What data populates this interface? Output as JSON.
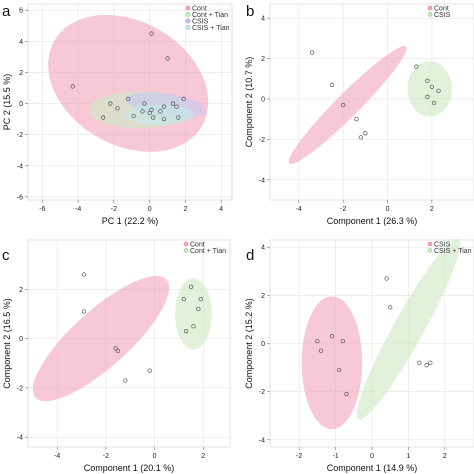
{
  "figure": {
    "panel_labels": [
      "a",
      "b",
      "c",
      "d"
    ]
  },
  "chart_data": [
    {
      "panel": "a",
      "type": "scatter",
      "xlabel": "PC 1 (22.2 %)",
      "ylabel": "PC 2 (15.5 %)",
      "xlim": [
        -6.8,
        4.6
      ],
      "ylim": [
        -6.2,
        6.4
      ],
      "xticks": [
        -6,
        -4,
        -2,
        0,
        2,
        4
      ],
      "yticks": [
        -6,
        -4,
        -2,
        0,
        2,
        4,
        6
      ],
      "grid": true,
      "legend": {
        "position": "top-right",
        "entries": [
          "Cont",
          "Cont + Tian",
          "CSIS",
          "CSIS + Tian"
        ]
      },
      "series": [
        {
          "name": "Cont",
          "color": "#e8879f",
          "fill": "#f2a7bc",
          "ellipse": {
            "cx": -1.2,
            "cy": 1.3,
            "rx": 5.1,
            "ry": 3.7,
            "angle": 30
          },
          "points": [
            [
              -4.3,
              1.1
            ],
            [
              0.1,
              4.5
            ],
            [
              1.0,
              2.9
            ],
            [
              -2.2,
              0.0
            ],
            [
              0.8,
              -0.2
            ]
          ]
        },
        {
          "name": "Cont + Tian",
          "color": "#9acd8c",
          "fill": "#cfe8c4",
          "ellipse": {
            "cx": -0.6,
            "cy": -0.4,
            "rx": 3.0,
            "ry": 1.1,
            "angle": 0
          },
          "points": [
            [
              -2.6,
              -0.9
            ],
            [
              -1.2,
              0.3
            ],
            [
              -0.3,
              0.0
            ],
            [
              0.0,
              -0.6
            ],
            [
              -1.8,
              -0.3
            ]
          ]
        },
        {
          "name": "CSIS",
          "color": "#9fa0e3",
          "fill": "#c8c8f2",
          "ellipse": {
            "cx": 0.9,
            "cy": -0.1,
            "rx": 2.4,
            "ry": 0.7,
            "angle": 8
          },
          "points": [
            [
              0.6,
              -0.5
            ],
            [
              1.3,
              0.0
            ],
            [
              1.9,
              0.3
            ],
            [
              1.5,
              -0.2
            ],
            [
              0.1,
              -0.4
            ]
          ]
        },
        {
          "name": "CSIS + Tian",
          "color": "#8fd0d6",
          "fill": "#c3e8ec",
          "ellipse": {
            "cx": 0.5,
            "cy": -0.7,
            "rx": 2.1,
            "ry": 0.6,
            "angle": 0
          },
          "points": [
            [
              -0.4,
              -0.5
            ],
            [
              0.2,
              -0.9
            ],
            [
              0.8,
              -1.0
            ],
            [
              1.6,
              -0.9
            ],
            [
              -0.9,
              -0.8
            ]
          ]
        }
      ]
    },
    {
      "panel": "b",
      "type": "scatter",
      "xlabel": "Component 1 (26.3 %)",
      "ylabel": "Component 2 (10.7 %)",
      "xlim": [
        -5.3,
        3.9
      ],
      "ylim": [
        -5.0,
        4.7
      ],
      "xticks": [
        -4,
        -2,
        0,
        2
      ],
      "yticks": [
        -4,
        -2,
        0,
        2,
        4
      ],
      "grid": true,
      "legend": {
        "position": "top-right",
        "entries": [
          "Cont",
          "CSIS"
        ]
      },
      "series": [
        {
          "name": "Cont",
          "color": "#e8879f",
          "fill": "#f2a7bc",
          "ellipse": {
            "cx": -1.8,
            "cy": -0.3,
            "rx": 3.9,
            "ry": 0.55,
            "angle": -45
          },
          "points": [
            [
              -3.4,
              2.3
            ],
            [
              -2.5,
              0.7
            ],
            [
              -2.0,
              -0.3
            ],
            [
              -1.4,
              -1.0
            ],
            [
              -1.2,
              -1.9
            ],
            [
              -1.0,
              -1.7
            ]
          ]
        },
        {
          "name": "CSIS",
          "color": "#9acd8c",
          "fill": "#cfe8c4",
          "ellipse": {
            "cx": 1.9,
            "cy": 0.5,
            "rx": 1.05,
            "ry": 1.3,
            "angle": 0
          },
          "points": [
            [
              1.3,
              1.6
            ],
            [
              1.8,
              0.9
            ],
            [
              2.0,
              0.6
            ],
            [
              1.8,
              0.1
            ],
            [
              2.1,
              -0.2
            ],
            [
              2.3,
              0.4
            ]
          ]
        }
      ]
    },
    {
      "panel": "c",
      "type": "scatter",
      "xlabel": "Component 1 (20.1 %)",
      "ylabel": "Component 2 (16.5 %)",
      "xlim": [
        -5.2,
        3.1
      ],
      "ylim": [
        -4.4,
        4.0
      ],
      "xticks": [
        -4,
        -2,
        0,
        2
      ],
      "yticks": [
        -4,
        -2,
        0,
        2
      ],
      "grid": true,
      "legend": {
        "position": "top-right",
        "entries": [
          "Cont",
          "Cont + Tian"
        ]
      },
      "series": [
        {
          "name": "Cont",
          "color": "#e8879f",
          "fill": "#f2a7bc",
          "ellipse": {
            "cx": -2.2,
            "cy": 0.0,
            "rx": 3.6,
            "ry": 1.15,
            "angle": -42
          },
          "points": [
            [
              -2.9,
              2.6
            ],
            [
              -2.9,
              1.1
            ],
            [
              -1.6,
              -0.4
            ],
            [
              -1.5,
              -0.5
            ],
            [
              -1.2,
              -1.7
            ],
            [
              -0.2,
              -1.3
            ]
          ]
        },
        {
          "name": "Cont + Tian",
          "color": "#9acd8c",
          "fill": "#cfe8c4",
          "ellipse": {
            "cx": 1.6,
            "cy": 1.0,
            "rx": 0.75,
            "ry": 1.45,
            "angle": 0
          },
          "points": [
            [
              1.2,
              1.6
            ],
            [
              1.3,
              0.3
            ],
            [
              1.8,
              1.2
            ],
            [
              1.9,
              1.6
            ],
            [
              1.6,
              0.5
            ],
            [
              1.5,
              2.1
            ]
          ]
        }
      ]
    },
    {
      "panel": "d",
      "type": "scatter",
      "xlabel": "Component 1 (14.9 %)",
      "ylabel": "Component 2 (15.2 %)",
      "xlim": [
        -2.8,
        2.8
      ],
      "ylim": [
        -4.3,
        4.3
      ],
      "xticks": [
        -2,
        -1,
        0,
        1,
        2
      ],
      "yticks": [
        -4,
        -2,
        0,
        2,
        4
      ],
      "grid": true,
      "legend": {
        "position": "top-right",
        "entries": [
          "CSIS",
          "CSIS + Tian"
        ]
      },
      "series": [
        {
          "name": "CSIS",
          "color": "#e8879f",
          "fill": "#f2a7bc",
          "ellipse": {
            "cx": -1.1,
            "cy": -0.8,
            "rx": 1.0,
            "ry": 2.2,
            "angle": 0
          },
          "points": [
            [
              -1.5,
              0.1
            ],
            [
              -1.4,
              -0.3
            ],
            [
              -1.1,
              0.3
            ],
            [
              -0.9,
              -1.1
            ],
            [
              -0.8,
              0.1
            ],
            [
              -0.7,
              -2.1
            ]
          ]
        },
        {
          "name": "CSIS + Tian",
          "color": "#9acd8c",
          "fill": "#cfe8c4",
          "ellipse": {
            "cx": 1.0,
            "cy": 0.6,
            "rx": 3.4,
            "ry": 0.5,
            "angle": -61
          },
          "points": [
            [
              0.4,
              2.7
            ],
            [
              0.5,
              1.5
            ],
            [
              1.3,
              -0.8
            ],
            [
              1.5,
              -0.9
            ],
            [
              1.6,
              -0.8
            ]
          ]
        }
      ]
    }
  ]
}
